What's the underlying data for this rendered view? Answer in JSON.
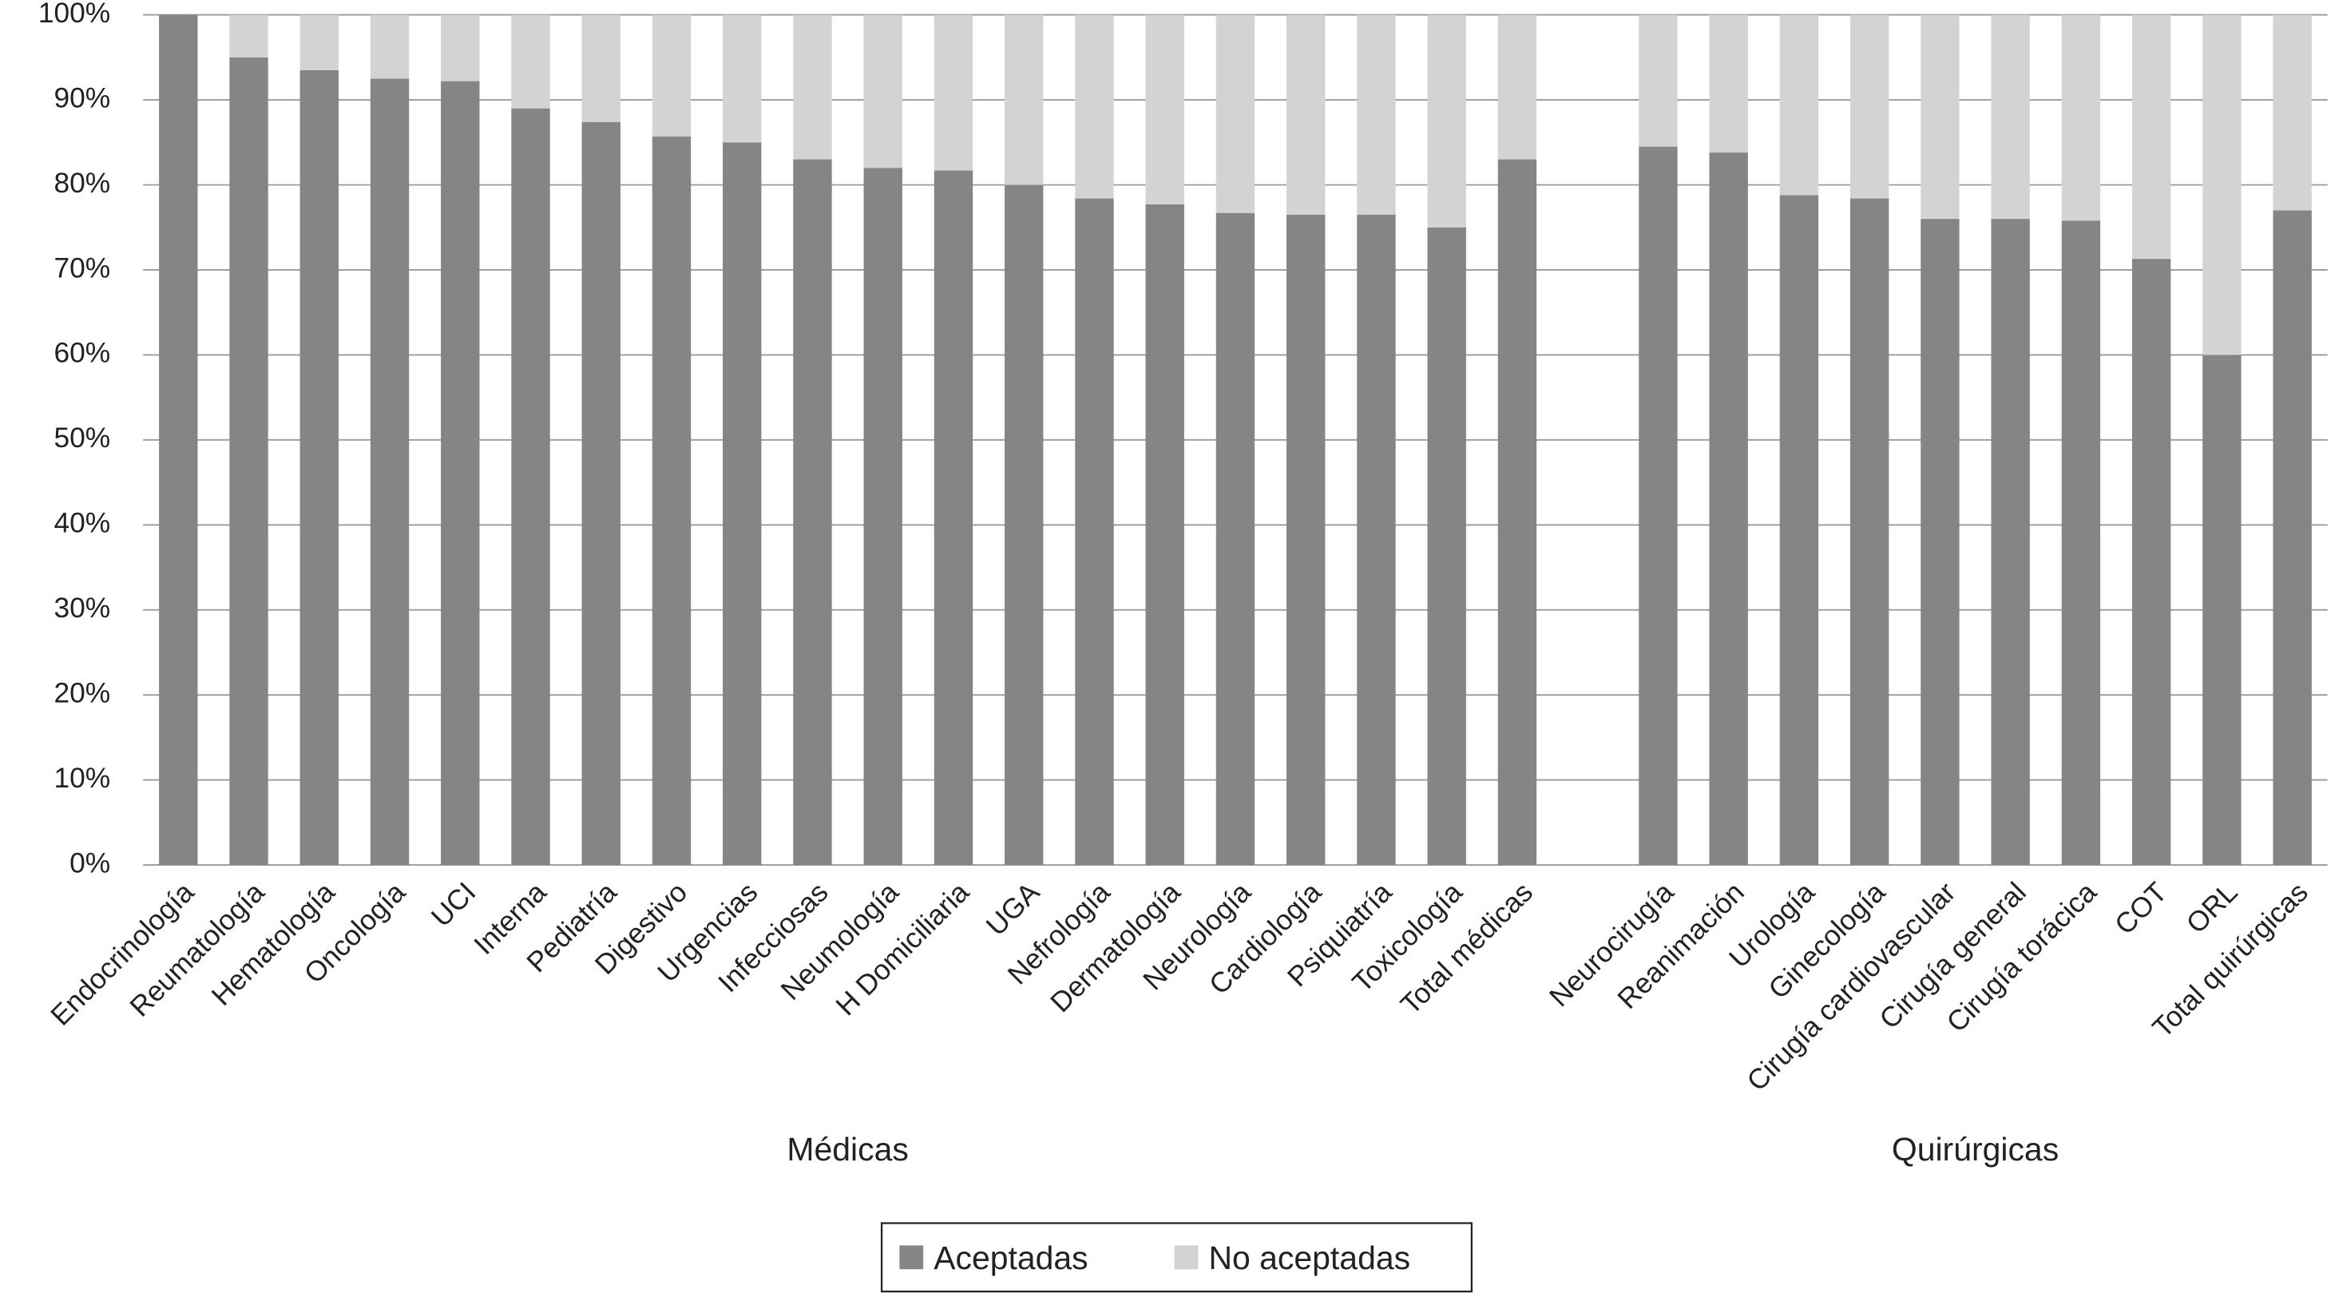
{
  "chart_data": {
    "type": "stacked_bar",
    "categories": [
      "Endocrinología",
      "Reumatología",
      "Hematología",
      "Oncología",
      "UCI",
      "Interna",
      "Pediatría",
      "Digestivo",
      "Urgencias",
      "Infecciosas",
      "Neumología",
      "H Domiciliaria",
      "UGA",
      "Nefrología",
      "Dermatología",
      "Neurología",
      "Cardiología",
      "Psiquiatría",
      "Toxicología",
      "Total médicas",
      null,
      "Neurocirugía",
      "Reanimación",
      "Urología",
      "Ginecología",
      "Cirugía cardiovascular",
      "Cirugía general",
      "Cirugía torácica",
      "COT",
      "ORL",
      "Total quirúrgicas"
    ],
    "series": [
      {
        "name": "Aceptadas",
        "color": "#858585",
        "values": [
          100,
          95,
          93.5,
          92.5,
          92.2,
          89,
          87.4,
          85.7,
          85,
          83,
          82,
          81.7,
          80,
          78.4,
          77.7,
          76.7,
          76.5,
          76.5,
          75,
          83,
          null,
          84.5,
          83.8,
          78.8,
          78.4,
          76,
          76,
          75.8,
          71.3,
          60,
          77
        ]
      },
      {
        "name": "No aceptadas",
        "color": "#d3d3d3",
        "values": [
          0,
          5,
          6.5,
          7.5,
          7.8,
          11,
          12.6,
          14.3,
          15,
          17,
          18,
          18.3,
          20,
          21.6,
          22.3,
          23.3,
          23.5,
          23.5,
          25,
          17,
          null,
          15.5,
          16.2,
          21.2,
          21.6,
          24,
          24,
          24.2,
          28.7,
          40,
          23
        ]
      }
    ],
    "group_labels": [
      "Médicas",
      "Quirúrgicas"
    ],
    "ylim": [
      0,
      100
    ],
    "yticks": [
      {
        "value": 0,
        "label": "0%"
      },
      {
        "value": 10,
        "label": "10%"
      },
      {
        "value": 20,
        "label": "20%"
      },
      {
        "value": 30,
        "label": "30%"
      },
      {
        "value": 40,
        "label": "40%"
      },
      {
        "value": 50,
        "label": "50%"
      },
      {
        "value": 60,
        "label": "60%"
      },
      {
        "value": 70,
        "label": "70%"
      },
      {
        "value": 80,
        "label": "80%"
      },
      {
        "value": 90,
        "label": "90%"
      },
      {
        "value": 100,
        "label": "100%"
      }
    ],
    "grid": true,
    "legend": "bottom"
  }
}
